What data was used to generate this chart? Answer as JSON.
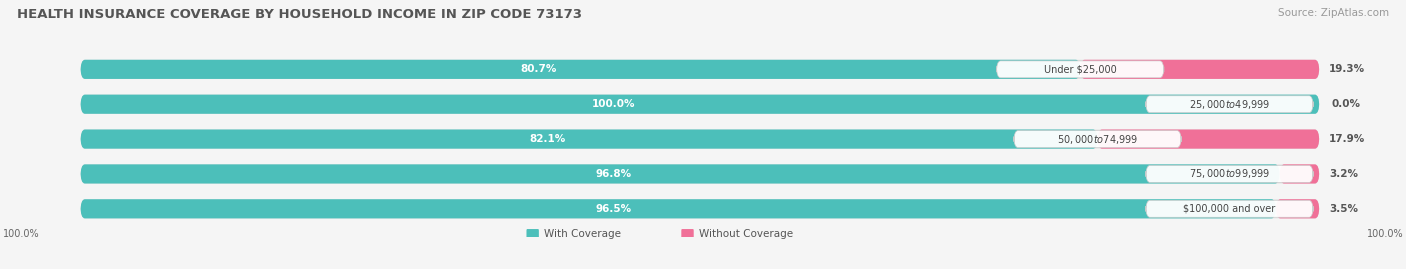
{
  "title": "HEALTH INSURANCE COVERAGE BY HOUSEHOLD INCOME IN ZIP CODE 73173",
  "source": "Source: ZipAtlas.com",
  "categories": [
    "Under $25,000",
    "$25,000 to $49,999",
    "$50,000 to $74,999",
    "$75,000 to $99,999",
    "$100,000 and over"
  ],
  "with_coverage": [
    80.7,
    100.0,
    82.1,
    96.8,
    96.5
  ],
  "without_coverage": [
    19.3,
    0.0,
    17.9,
    3.2,
    3.5
  ],
  "color_with": "#4CBFBA",
  "color_without": "#F07098",
  "color_without_light": "#F5B8CC",
  "bg_color": "#f5f5f5",
  "bar_bg": "#e2e2e2",
  "legend_with": "With Coverage",
  "legend_without": "Without Coverage",
  "title_fontsize": 9.5,
  "source_fontsize": 7.5,
  "bar_label_fontsize": 7.5,
  "category_fontsize": 7.0
}
